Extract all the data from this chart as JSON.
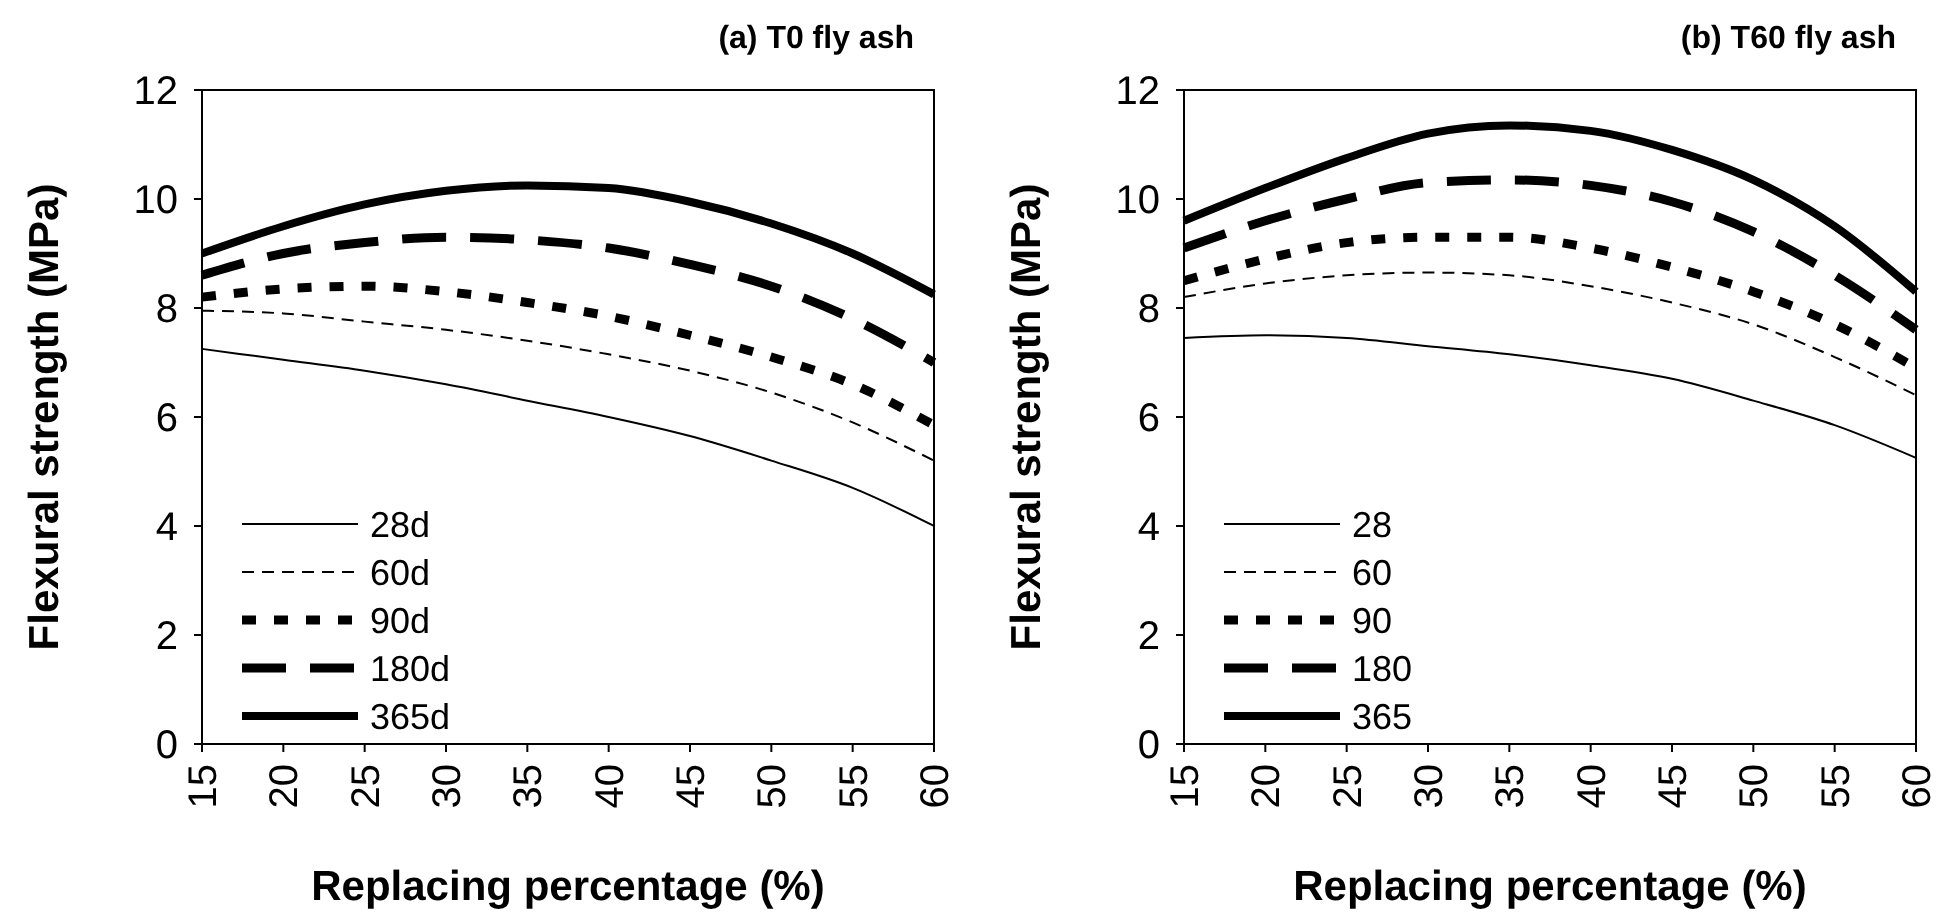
{
  "chart_data": [
    {
      "type": "line",
      "title": "(a) T0 fly ash",
      "xlabel": "Replacing percentage (%)",
      "ylabel": "Flexural strength (MPa)",
      "x": [
        15,
        20,
        25,
        30,
        35,
        40,
        45,
        50,
        55,
        60
      ],
      "xlim": [
        15,
        60
      ],
      "xticks": [
        15,
        20,
        25,
        30,
        35,
        40,
        45,
        50,
        55,
        60
      ],
      "ylim": [
        0,
        12
      ],
      "yticks": [
        0,
        2,
        4,
        6,
        8,
        10,
        12
      ],
      "grid": false,
      "legend": "bottom left",
      "series": [
        {
          "name": "28d",
          "color": "#000000",
          "line_style": "solid",
          "values": [
            7.25,
            7.05,
            6.85,
            6.6,
            6.3,
            6.0,
            5.65,
            5.2,
            4.7,
            4.0
          ]
        },
        {
          "name": "60d",
          "color": "#000000",
          "line_style": "dashed",
          "values": [
            7.95,
            7.9,
            7.75,
            7.6,
            7.4,
            7.15,
            6.85,
            6.45,
            5.9,
            5.2
          ]
        },
        {
          "name": "90d",
          "color": "#000000",
          "line_style": "dotted",
          "values": [
            8.2,
            8.35,
            8.4,
            8.3,
            8.1,
            7.85,
            7.5,
            7.1,
            6.6,
            5.85
          ]
        },
        {
          "name": "180d",
          "color": "#000000",
          "line_style": "dashed",
          "values": [
            8.6,
            9.0,
            9.2,
            9.3,
            9.25,
            9.1,
            8.8,
            8.4,
            7.8,
            7.0
          ]
        },
        {
          "name": "365d",
          "color": "#000000",
          "line_style": "solid",
          "values": [
            9.0,
            9.5,
            9.9,
            10.15,
            10.25,
            10.2,
            9.95,
            9.55,
            9.0,
            8.25
          ]
        }
      ]
    },
    {
      "type": "line",
      "title": "(b) T60 fly ash",
      "xlabel": "Replacing percentage (%)",
      "ylabel": "Flexural strength (MPa)",
      "x": [
        15,
        20,
        25,
        30,
        35,
        40,
        45,
        50,
        55,
        60
      ],
      "xlim": [
        15,
        60
      ],
      "xticks": [
        15,
        20,
        25,
        30,
        35,
        40,
        45,
        50,
        55,
        60
      ],
      "ylim": [
        0,
        12
      ],
      "yticks": [
        0,
        2,
        4,
        6,
        8,
        10,
        12
      ],
      "grid": false,
      "legend": "bottom left",
      "series": [
        {
          "name": "28",
          "color": "#000000",
          "line_style": "solid",
          "values": [
            7.45,
            7.5,
            7.45,
            7.3,
            7.15,
            6.95,
            6.7,
            6.3,
            5.85,
            5.25
          ]
        },
        {
          "name": "60",
          "color": "#000000",
          "line_style": "dashed",
          "values": [
            8.2,
            8.45,
            8.6,
            8.65,
            8.6,
            8.4,
            8.1,
            7.7,
            7.1,
            6.4
          ]
        },
        {
          "name": "90",
          "color": "#000000",
          "line_style": "dotted",
          "values": [
            8.5,
            8.9,
            9.2,
            9.3,
            9.3,
            9.1,
            8.75,
            8.3,
            7.7,
            6.9
          ]
        },
        {
          "name": "180",
          "color": "#000000",
          "line_style": "dashed",
          "values": [
            9.1,
            9.6,
            10.0,
            10.3,
            10.35,
            10.25,
            9.95,
            9.4,
            8.6,
            7.6
          ]
        },
        {
          "name": "365",
          "color": "#000000",
          "line_style": "solid",
          "values": [
            9.6,
            10.2,
            10.75,
            11.2,
            11.35,
            11.25,
            10.9,
            10.35,
            9.5,
            8.3
          ]
        }
      ]
    }
  ]
}
